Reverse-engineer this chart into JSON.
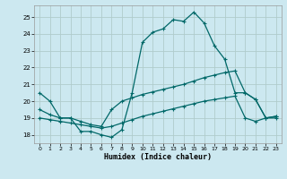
{
  "xlabel": "Humidex (Indice chaleur)",
  "bg_color": "#cce8f0",
  "grid_color": "#b0cccc",
  "line_color": "#006868",
  "xlim": [
    -0.5,
    23.5
  ],
  "ylim": [
    17.5,
    25.7
  ],
  "yticks": [
    18,
    19,
    20,
    21,
    22,
    23,
    24,
    25
  ],
  "xticks": [
    0,
    1,
    2,
    3,
    4,
    5,
    6,
    7,
    8,
    9,
    10,
    11,
    12,
    13,
    14,
    15,
    16,
    17,
    18,
    19,
    20,
    21,
    22,
    23
  ],
  "series1_x": [
    0,
    1,
    2,
    3,
    4,
    5,
    6,
    7,
    8,
    9,
    10,
    11,
    12,
    13,
    14,
    15,
    16,
    17,
    18,
    19,
    20,
    21,
    22,
    23
  ],
  "series1_y": [
    20.5,
    20.0,
    19.0,
    19.0,
    18.2,
    18.2,
    18.0,
    17.85,
    18.3,
    20.5,
    23.5,
    24.1,
    24.3,
    24.85,
    24.75,
    25.3,
    24.65,
    23.3,
    22.5,
    20.5,
    20.5,
    20.1,
    19.0,
    19.1
  ],
  "series2_x": [
    0,
    1,
    2,
    3,
    4,
    5,
    6,
    7,
    8,
    9,
    10,
    11,
    12,
    13,
    14,
    15,
    16,
    17,
    18,
    19,
    20,
    21,
    22,
    23
  ],
  "series2_y": [
    19.5,
    19.2,
    19.0,
    19.0,
    18.8,
    18.6,
    18.5,
    19.5,
    20.0,
    20.2,
    20.4,
    20.55,
    20.7,
    20.85,
    21.0,
    21.2,
    21.4,
    21.55,
    21.7,
    21.8,
    20.5,
    20.1,
    19.0,
    19.1
  ],
  "series3_x": [
    0,
    1,
    2,
    3,
    4,
    5,
    6,
    7,
    8,
    9,
    10,
    11,
    12,
    13,
    14,
    15,
    16,
    17,
    18,
    19,
    20,
    21,
    22,
    23
  ],
  "series3_y": [
    19.0,
    18.9,
    18.8,
    18.7,
    18.6,
    18.5,
    18.4,
    18.5,
    18.7,
    18.9,
    19.1,
    19.25,
    19.4,
    19.55,
    19.7,
    19.85,
    20.0,
    20.1,
    20.2,
    20.3,
    19.0,
    18.8,
    19.0,
    19.0
  ]
}
